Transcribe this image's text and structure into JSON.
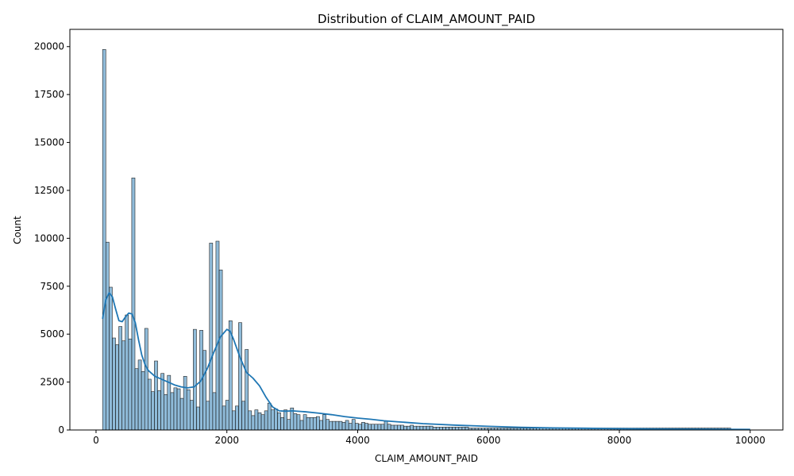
{
  "chart_data": {
    "type": "bar",
    "title": "Distribution of CLAIM_AMOUNT_PAID",
    "xlabel": "CLAIM_AMOUNT_PAID",
    "ylabel": "Count",
    "xlim": [
      -400,
      10500
    ],
    "ylim": [
      0,
      20900
    ],
    "x_ticks": [
      0,
      2000,
      4000,
      6000,
      8000,
      10000
    ],
    "x_tick_labels": [
      "0",
      "2000",
      "4000",
      "6000",
      "8000",
      "10000"
    ],
    "y_ticks": [
      0,
      2500,
      5000,
      7500,
      10000,
      12500,
      15000,
      17500,
      20000
    ],
    "y_tick_labels": [
      "0",
      "2500",
      "5000",
      "7500",
      "10000",
      "12500",
      "15000",
      "17500",
      "20000"
    ],
    "bin_start": 100,
    "bin_width": 49.5,
    "counts": [
      19850,
      9800,
      7450,
      4800,
      4450,
      5400,
      4650,
      6000,
      4750,
      13150,
      3200,
      3650,
      3050,
      5300,
      2650,
      2000,
      3600,
      2050,
      2950,
      1850,
      2850,
      1950,
      2200,
      2150,
      1650,
      2800,
      2100,
      1550,
      5250,
      1200,
      5200,
      4150,
      1500,
      9750,
      1950,
      9850,
      8350,
      1250,
      1550,
      5700,
      1000,
      1250,
      5600,
      1500,
      4200,
      1000,
      750,
      1050,
      900,
      800,
      1000,
      1400,
      1050,
      1100,
      900,
      650,
      1050,
      550,
      1150,
      850,
      800,
      500,
      800,
      650,
      650,
      650,
      700,
      500,
      800,
      550,
      450,
      450,
      450,
      450,
      400,
      500,
      350,
      550,
      350,
      300,
      400,
      350,
      300,
      300,
      300,
      300,
      300,
      450,
      300,
      250,
      250,
      250,
      250,
      200,
      200,
      250,
      200,
      200,
      200,
      200,
      200,
      200,
      150,
      150,
      150,
      150,
      150,
      150,
      150,
      150,
      150,
      150,
      150,
      100,
      100,
      100,
      100,
      100,
      100,
      100,
      100,
      100,
      100,
      100,
      100,
      100,
      100,
      100,
      100,
      100,
      100,
      100,
      100,
      100,
      100,
      100,
      100,
      100,
      100,
      100,
      100,
      100,
      100,
      100,
      100,
      100,
      100,
      100,
      100,
      100,
      100,
      100,
      100,
      100,
      100,
      100,
      100,
      100,
      100,
      100,
      100,
      100,
      100,
      100,
      100,
      100,
      100,
      100,
      100,
      100,
      100,
      100,
      100,
      100,
      100,
      100,
      100,
      100,
      100,
      100,
      100,
      100,
      100,
      100,
      100,
      100,
      100,
      100,
      100,
      100,
      100,
      100,
      100,
      100
    ],
    "kde_x": [
      100,
      150,
      200,
      250,
      300,
      350,
      400,
      450,
      500,
      550,
      600,
      650,
      700,
      750,
      800,
      900,
      1000,
      1100,
      1200,
      1300,
      1400,
      1500,
      1600,
      1700,
      1800,
      1900,
      2000,
      2050,
      2100,
      2200,
      2300,
      2400,
      2500,
      2600,
      2700,
      2800,
      2900,
      3000,
      3200,
      3400,
      3600,
      3800,
      4000,
      4200,
      4400,
      4600,
      4800,
      5000,
      5500,
      6000,
      6500,
      7000,
      7500,
      8000,
      8500,
      9000,
      9500,
      10000
    ],
    "kde_y": [
      5800,
      6800,
      7150,
      6950,
      6300,
      5700,
      5650,
      5900,
      6100,
      6050,
      5600,
      4700,
      3900,
      3400,
      3100,
      2800,
      2650,
      2500,
      2350,
      2250,
      2200,
      2250,
      2550,
      3200,
      4050,
      4850,
      5250,
      5150,
      4750,
      3800,
      3000,
      2700,
      2300,
      1700,
      1200,
      1000,
      980,
      1000,
      950,
      880,
      800,
      700,
      620,
      560,
      480,
      430,
      380,
      330,
      250,
      190,
      140,
      110,
      90,
      70,
      55,
      45,
      35,
      30
    ],
    "colors": {
      "bar_fill": "#1f77b4",
      "bar_opacity": 0.5,
      "bar_edge": "#222222",
      "kde_line": "#1f77b4",
      "axes": "#000000"
    },
    "grid": false,
    "legend": "none"
  }
}
